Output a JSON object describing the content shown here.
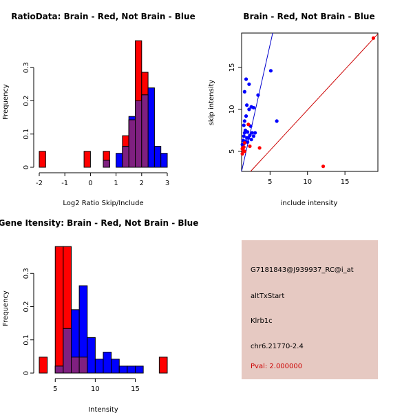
{
  "chart_data": [
    {
      "type": "bar",
      "title": "RatioData: Brain - Red, Not Brain - Blue",
      "xlabel": "Log2 Ratio Skip/Include",
      "ylabel": "Frequency",
      "xlim": [
        -2,
        3
      ],
      "ylim": [
        0,
        0.4
      ],
      "xticks": [
        -2,
        -1,
        0,
        1,
        2,
        3
      ],
      "yticks": [
        0.0,
        0.1,
        0.2,
        0.3
      ],
      "series": [
        {
          "name": "Brain",
          "color": "#ff0000",
          "bins": [
            [
              -2.0,
              -1.75,
              0.048
            ],
            [
              -0.25,
              0.0,
              0.048
            ],
            [
              0.5,
              0.75,
              0.048
            ],
            [
              1.25,
              1.5,
              0.095
            ],
            [
              1.5,
              1.75,
              0.143
            ],
            [
              1.75,
              2.0,
              0.381
            ],
            [
              2.0,
              2.25,
              0.286
            ]
          ]
        },
        {
          "name": "Not Brain",
          "color": "#0000ff",
          "bins": [
            [
              0.5,
              0.75,
              0.021
            ],
            [
              1.0,
              1.25,
              0.042
            ],
            [
              1.25,
              1.5,
              0.063
            ],
            [
              1.5,
              1.75,
              0.153
            ],
            [
              1.75,
              2.0,
              0.2
            ],
            [
              2.0,
              2.25,
              0.218
            ],
            [
              2.25,
              2.5,
              0.239
            ],
            [
              2.5,
              2.75,
              0.063
            ],
            [
              2.75,
              3.0,
              0.042
            ]
          ]
        }
      ]
    },
    {
      "type": "scatter",
      "title": "Brain - Red, Not Brain - Blue",
      "xlabel": "include intensity",
      "ylabel": "skip intensity",
      "xlim": [
        1.2,
        19.4
      ],
      "ylim": [
        2.6,
        19.1
      ],
      "xticks": [
        5,
        10,
        15
      ],
      "yticks": [
        5,
        10,
        15
      ],
      "lines": [
        {
          "name": "Not Brain fit",
          "color": "#0000cc",
          "x1": 1.2,
          "y1": 2.6,
          "x2": 5.35,
          "y2": 19.1
        },
        {
          "name": "Brain fit",
          "color": "#cc0000",
          "x1": 2.4,
          "y1": 2.6,
          "x2": 19.4,
          "y2": 19.0
        }
      ],
      "series": [
        {
          "name": "Not Brain",
          "color": "#0000ff",
          "points": [
            [
              1.6,
              12.1
            ],
            [
              1.8,
              13.6
            ],
            [
              2.2,
              13.0
            ],
            [
              5.1,
              14.6
            ],
            [
              3.4,
              11.7
            ],
            [
              2.5,
              10.3
            ],
            [
              2.2,
              10.0
            ],
            [
              1.9,
              10.5
            ],
            [
              2.8,
              10.2
            ],
            [
              5.9,
              8.6
            ],
            [
              1.6,
              8.6
            ],
            [
              1.8,
              9.2
            ],
            [
              2.4,
              8.0
            ],
            [
              1.5,
              8.1
            ],
            [
              1.7,
              7.5
            ],
            [
              2.0,
              7.3
            ],
            [
              2.6,
              7.2
            ],
            [
              3.0,
              7.2
            ],
            [
              1.6,
              7.2
            ],
            [
              2.3,
              6.9
            ],
            [
              2.8,
              6.8
            ],
            [
              1.5,
              6.8
            ],
            [
              2.1,
              6.6
            ],
            [
              1.9,
              6.6
            ],
            [
              2.5,
              6.4
            ],
            [
              1.4,
              6.3
            ],
            [
              1.7,
              6.2
            ],
            [
              2.0,
              6.1
            ],
            [
              1.5,
              5.9
            ],
            [
              1.3,
              5.8
            ]
          ]
        },
        {
          "name": "Brain",
          "color": "#ff0000",
          "points": [
            [
              18.8,
              18.5
            ],
            [
              12.1,
              3.2
            ],
            [
              3.6,
              5.4
            ],
            [
              2.3,
              5.6
            ],
            [
              2.1,
              8.2
            ],
            [
              1.6,
              6.0
            ],
            [
              1.5,
              5.5
            ],
            [
              1.3,
              5.3
            ],
            [
              1.4,
              5.1
            ],
            [
              1.6,
              5.0
            ],
            [
              1.3,
              4.7
            ]
          ]
        }
      ]
    },
    {
      "type": "bar",
      "title": "Gene Itensity: Brain - Red, Not Brain - Blue",
      "xlabel": "Intensity",
      "ylabel": "Frequency",
      "xlim": [
        3,
        19
      ],
      "ylim": [
        0,
        0.4
      ],
      "xticks": [
        5,
        10,
        15
      ],
      "yticks": [
        0.0,
        0.1,
        0.2,
        0.3
      ],
      "series": [
        {
          "name": "Brain",
          "color": "#ff0000",
          "bins": [
            [
              3,
              4,
              0.048
            ],
            [
              5,
              6,
              0.381
            ],
            [
              6,
              7,
              0.381
            ],
            [
              7,
              8,
              0.048
            ],
            [
              8,
              9,
              0.048
            ],
            [
              18,
              19,
              0.048
            ]
          ]
        },
        {
          "name": "Not Brain",
          "color": "#0000ff",
          "bins": [
            [
              5,
              6,
              0.021
            ],
            [
              6,
              7,
              0.134
            ],
            [
              7,
              8,
              0.191
            ],
            [
              8,
              9,
              0.263
            ],
            [
              9,
              10,
              0.107
            ],
            [
              10,
              11,
              0.042
            ],
            [
              11,
              12,
              0.063
            ],
            [
              12,
              13,
              0.042
            ],
            [
              13,
              14,
              0.021
            ],
            [
              14,
              15,
              0.021
            ],
            [
              15,
              16,
              0.021
            ]
          ]
        }
      ]
    }
  ],
  "info": {
    "probe_id": "G7181843@J939937_RC@i_at",
    "event": "altTxStart",
    "gene": "Klrb1c",
    "location": "chr6.21770-2.4",
    "pval": "Pval: 2.000000"
  }
}
